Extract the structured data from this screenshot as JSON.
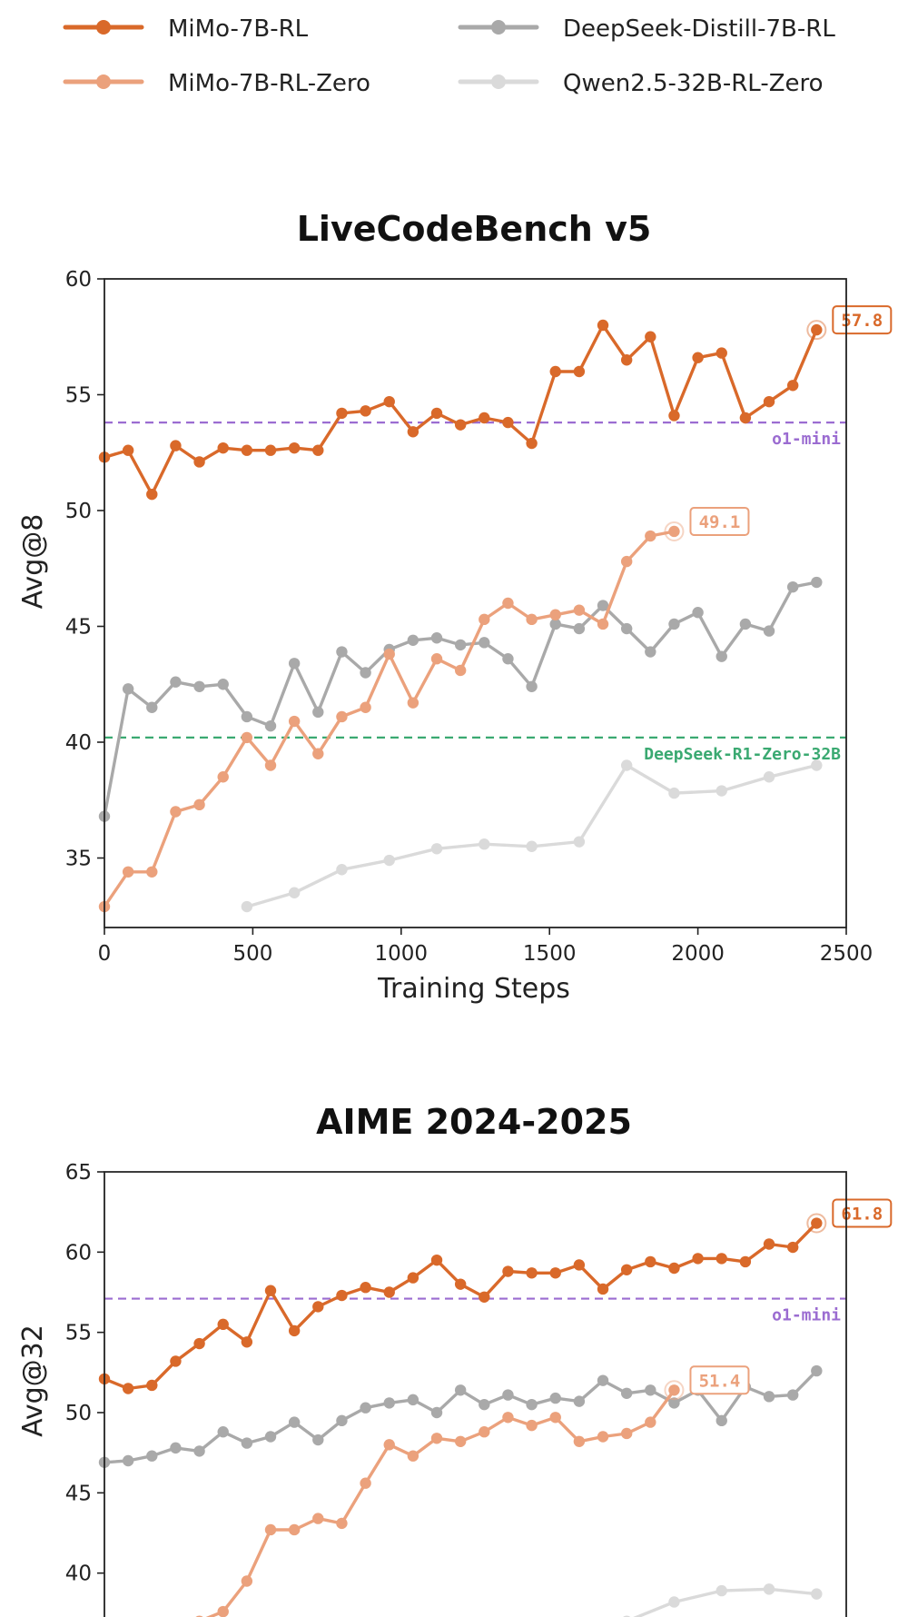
{
  "colors": {
    "mimo_rl": "#d9692a",
    "mimo_rl_zero": "#eba17c",
    "deepseek_distill": "#a9a9a9",
    "qwen_zero": "#dadada",
    "o1_mini": "#9b6cd1",
    "deepseek_r1_zero": "#3aa971"
  },
  "legend": [
    {
      "name": "MiMo-7B-RL",
      "color_key": "mimo_rl"
    },
    {
      "name": "DeepSeek-Distill-7B-RL",
      "color_key": "deepseek_distill"
    },
    {
      "name": "MiMo-7B-RL-Zero",
      "color_key": "mimo_rl_zero"
    },
    {
      "name": "Qwen2.5-32B-RL-Zero",
      "color_key": "qwen_zero"
    }
  ],
  "chart_data": [
    {
      "type": "line",
      "title": "LiveCodeBench v5",
      "xlabel": "Training Steps",
      "ylabel": "Avg@8",
      "xlim": [
        0,
        2500
      ],
      "ylim": [
        32,
        60
      ],
      "xticks": [
        0,
        500,
        1000,
        1500,
        2000,
        2500
      ],
      "yticks": [
        35,
        40,
        45,
        50,
        55,
        60
      ],
      "reference_lines": [
        {
          "label": "o1-mini",
          "y": 53.8,
          "color_key": "o1_mini"
        },
        {
          "label": "DeepSeek-R1-Zero-32B",
          "y": 40.2,
          "color_key": "deepseek_r1_zero"
        }
      ],
      "series": [
        {
          "name": "MiMo-7B-RL",
          "color_key": "mimo_rl",
          "end_label": "57.8",
          "x": [
            0,
            80,
            160,
            240,
            320,
            400,
            480,
            560,
            640,
            720,
            800,
            880,
            960,
            1040,
            1120,
            1200,
            1280,
            1360,
            1440,
            1520,
            1600,
            1680,
            1760,
            1840,
            1920,
            2000,
            2080,
            2160,
            2240,
            2320,
            2400
          ],
          "y": [
            52.3,
            52.6,
            50.7,
            52.8,
            52.1,
            52.7,
            52.6,
            52.6,
            52.7,
            52.6,
            54.2,
            54.3,
            54.7,
            53.4,
            54.2,
            53.7,
            54.0,
            53.8,
            52.9,
            56.0,
            56.0,
            58.0,
            56.5,
            57.5,
            54.1,
            56.6,
            56.8,
            54.0,
            54.7,
            55.4,
            57.8
          ]
        },
        {
          "name": "DeepSeek-Distill-7B-RL",
          "color_key": "deepseek_distill",
          "end_label": "",
          "x": [
            0,
            80,
            160,
            240,
            320,
            400,
            480,
            560,
            640,
            720,
            800,
            880,
            960,
            1040,
            1120,
            1200,
            1280,
            1360,
            1440,
            1520,
            1600,
            1680,
            1760,
            1840,
            1920,
            2000,
            2080,
            2160,
            2240,
            2320,
            2400
          ],
          "y": [
            36.8,
            42.3,
            41.5,
            42.6,
            42.4,
            42.5,
            41.1,
            40.7,
            43.4,
            41.3,
            43.9,
            43.0,
            44.0,
            44.4,
            44.5,
            44.2,
            44.3,
            43.6,
            42.4,
            45.1,
            44.9,
            45.9,
            44.9,
            43.9,
            45.1,
            45.6,
            43.7,
            45.1,
            44.8,
            46.7,
            46.9
          ]
        },
        {
          "name": "MiMo-7B-RL-Zero",
          "color_key": "mimo_rl_zero",
          "end_label": "49.1",
          "x": [
            0,
            80,
            160,
            240,
            320,
            400,
            480,
            560,
            640,
            720,
            800,
            880,
            960,
            1040,
            1120,
            1200,
            1280,
            1360,
            1440,
            1520,
            1600,
            1680,
            1760,
            1840,
            1920
          ],
          "y": [
            32.9,
            34.4,
            34.4,
            37.0,
            37.3,
            38.5,
            40.2,
            39.0,
            40.9,
            39.5,
            41.1,
            41.5,
            43.8,
            41.7,
            43.6,
            43.1,
            45.3,
            46.0,
            45.3,
            45.5,
            45.7,
            45.1,
            47.8,
            48.9,
            49.1
          ]
        },
        {
          "name": "Qwen2.5-32B-RL-Zero",
          "color_key": "qwen_zero",
          "end_label": "",
          "x": [
            480,
            640,
            800,
            960,
            1120,
            1280,
            1440,
            1600,
            1760,
            1920,
            2080,
            2240,
            2400
          ],
          "y": [
            32.9,
            33.5,
            34.5,
            34.9,
            35.4,
            35.6,
            35.5,
            35.7,
            39.0,
            37.8,
            37.9,
            38.5,
            39.0
          ]
        }
      ]
    },
    {
      "type": "line",
      "title": "AIME 2024-2025",
      "xlabel": "",
      "ylabel": "Avg@32",
      "xlim": [
        0,
        2500
      ],
      "ylim": [
        35,
        65
      ],
      "xticks": [],
      "yticks": [
        40,
        45,
        50,
        55,
        60,
        65
      ],
      "reference_lines": [
        {
          "label": "o1-mini",
          "y": 57.1,
          "color_key": "o1_mini"
        }
      ],
      "series": [
        {
          "name": "MiMo-7B-RL",
          "color_key": "mimo_rl",
          "end_label": "61.8",
          "x": [
            0,
            80,
            160,
            240,
            320,
            400,
            480,
            560,
            640,
            720,
            800,
            880,
            960,
            1040,
            1120,
            1200,
            1280,
            1360,
            1440,
            1520,
            1600,
            1680,
            1760,
            1840,
            1920,
            2000,
            2080,
            2160,
            2240,
            2320,
            2400
          ],
          "y": [
            52.1,
            51.5,
            51.7,
            53.2,
            54.3,
            55.5,
            54.4,
            57.6,
            55.1,
            56.6,
            57.3,
            57.8,
            57.5,
            58.4,
            59.5,
            58.0,
            57.2,
            58.8,
            58.7,
            58.7,
            59.2,
            57.7,
            58.9,
            59.4,
            59.0,
            59.6,
            59.6,
            59.4,
            60.5,
            60.3,
            61.8
          ]
        },
        {
          "name": "DeepSeek-Distill-7B-RL",
          "color_key": "deepseek_distill",
          "end_label": "",
          "x": [
            0,
            80,
            160,
            240,
            320,
            400,
            480,
            560,
            640,
            720,
            800,
            880,
            960,
            1040,
            1120,
            1200,
            1280,
            1360,
            1440,
            1520,
            1600,
            1680,
            1760,
            1840,
            1920,
            2000,
            2080,
            2160,
            2240,
            2320,
            2400
          ],
          "y": [
            46.9,
            47.0,
            47.3,
            47.8,
            47.6,
            48.8,
            48.1,
            48.5,
            49.4,
            48.3,
            49.5,
            50.3,
            50.6,
            50.8,
            50.0,
            51.4,
            50.5,
            51.1,
            50.5,
            50.9,
            50.7,
            52.0,
            51.2,
            51.4,
            50.6,
            51.4,
            49.5,
            51.6,
            51.0,
            51.1,
            52.6
          ]
        },
        {
          "name": "MiMo-7B-RL-Zero",
          "color_key": "mimo_rl_zero",
          "end_label": "51.4",
          "x": [
            320,
            400,
            480,
            560,
            640,
            720,
            800,
            880,
            960,
            1040,
            1120,
            1200,
            1280,
            1360,
            1440,
            1520,
            1600,
            1680,
            1760,
            1840,
            1920
          ],
          "y": [
            37.0,
            37.6,
            39.5,
            42.7,
            42.7,
            43.4,
            43.1,
            45.6,
            48.0,
            47.3,
            48.4,
            48.2,
            48.8,
            49.7,
            49.2,
            49.7,
            48.2,
            48.5,
            48.7,
            49.4,
            51.4
          ]
        },
        {
          "name": "Qwen2.5-32B-RL-Zero",
          "color_key": "qwen_zero",
          "end_label": "",
          "x": [
            1760,
            1920,
            2080,
            2240,
            2400
          ],
          "y": [
            37.0,
            38.2,
            38.9,
            39.0,
            38.7
          ]
        }
      ]
    }
  ]
}
